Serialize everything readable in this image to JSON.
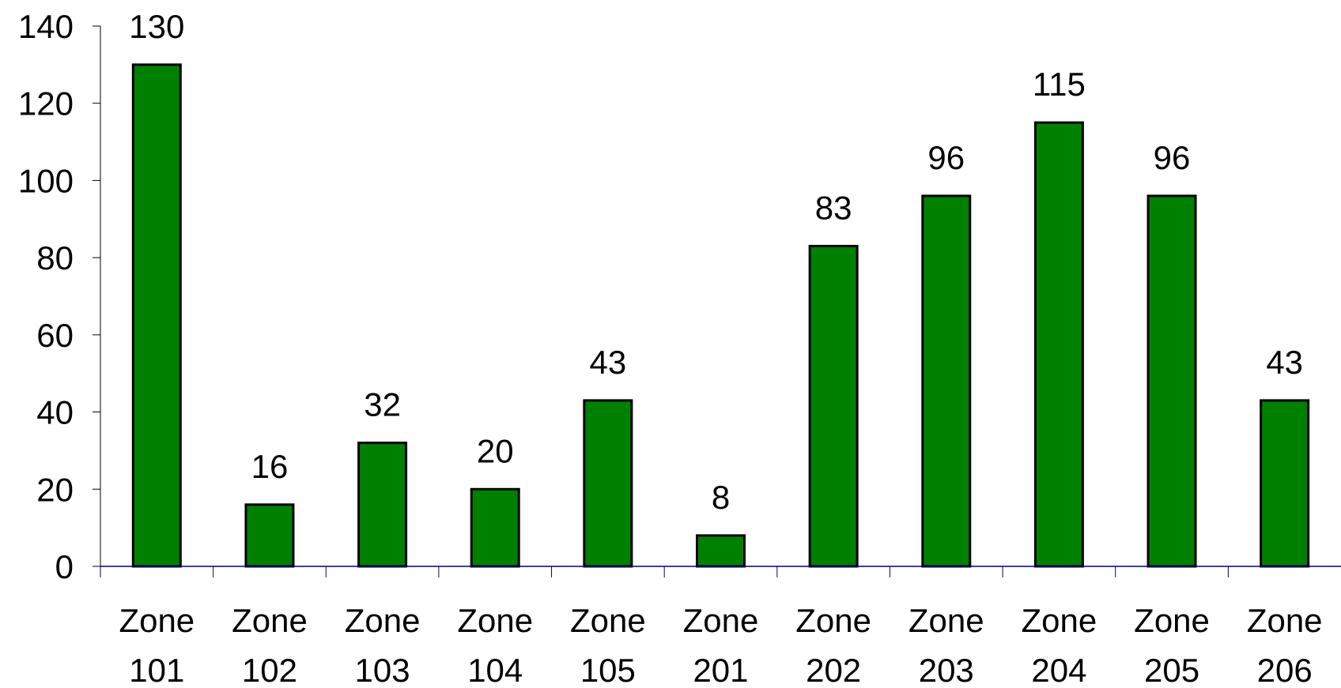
{
  "chart_data": {
    "type": "bar",
    "title": "",
    "xlabel": "",
    "ylabel": "",
    "categories": [
      [
        "Zone",
        "101"
      ],
      [
        "Zone",
        "102"
      ],
      [
        "Zone",
        "103"
      ],
      [
        "Zone",
        "104"
      ],
      [
        "Zone",
        "105"
      ],
      [
        "Zone",
        "201"
      ],
      [
        "Zone",
        "202"
      ],
      [
        "Zone",
        "203"
      ],
      [
        "Zone",
        "204"
      ],
      [
        "Zone",
        "205"
      ],
      [
        "Zone",
        "206"
      ]
    ],
    "values": [
      130,
      16,
      32,
      20,
      43,
      8,
      83,
      96,
      115,
      96,
      43
    ],
    "ylim": [
      0,
      140
    ],
    "yticks": [
      0,
      20,
      40,
      60,
      80,
      100,
      120,
      140
    ],
    "grid": false,
    "legend": "none",
    "data_labels": true,
    "colors": {
      "bar_fill": "#008000",
      "bar_stroke": "#000000",
      "x_axis": "#000080",
      "y_axis": "#000000"
    }
  }
}
